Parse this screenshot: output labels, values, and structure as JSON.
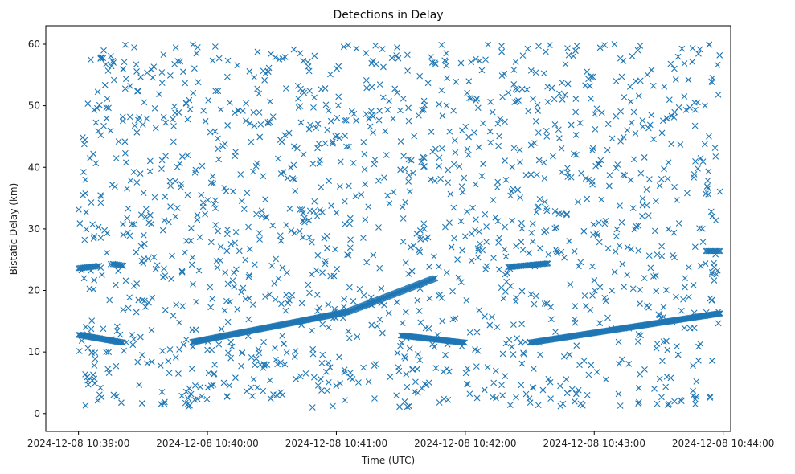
{
  "chart_data": {
    "type": "scatter",
    "title": "Detections in Delay",
    "xlabel": "Time (UTC)",
    "ylabel": "Bistatic Delay (km)",
    "marker": "x",
    "color": "#1f77b4",
    "grid": false,
    "x_units": "seconds after 2024-12-08 10:38:00 UTC",
    "xlim": [
      44.8,
      363.5
    ],
    "ylim": [
      -2.9,
      63
    ],
    "x_ticks": [
      {
        "value": 60,
        "label": "2024-12-08 10:39:00"
      },
      {
        "value": 120,
        "label": "2024-12-08 10:40:00"
      },
      {
        "value": 180,
        "label": "2024-12-08 10:41:00"
      },
      {
        "value": 240,
        "label": "2024-12-08 10:42:00"
      },
      {
        "value": 300,
        "label": "2024-12-08 10:43:00"
      },
      {
        "value": 360,
        "label": "2024-12-08 10:44:00"
      }
    ],
    "y_ticks": [
      0,
      10,
      20,
      30,
      40,
      50,
      60
    ],
    "tracks": [
      {
        "x_start": 60,
        "x_end": 81,
        "y_start": 12.8,
        "y_end": 11.5,
        "step": 0.45
      },
      {
        "x_start": 113,
        "x_end": 185,
        "y_start": 11.6,
        "y_end": 16.5,
        "step": 0.45
      },
      {
        "x_start": 185,
        "x_end": 226,
        "y_start": 16.5,
        "y_end": 22.0,
        "step": 0.45
      },
      {
        "x_start": 210,
        "x_end": 240,
        "y_start": 12.7,
        "y_end": 11.5,
        "step": 0.45
      },
      {
        "x_start": 270,
        "x_end": 359,
        "y_start": 11.5,
        "y_end": 16.3,
        "step": 0.45
      },
      {
        "x_start": 60,
        "x_end": 70,
        "y_start": 23.6,
        "y_end": 24.0,
        "step": 0.6
      },
      {
        "x_start": 76,
        "x_end": 81,
        "y_start": 24.3,
        "y_end": 24.0,
        "step": 0.6
      },
      {
        "x_start": 260,
        "x_end": 279,
        "y_start": 23.8,
        "y_end": 24.4,
        "step": 0.6
      },
      {
        "x_start": 352,
        "x_end": 359,
        "y_start": 26.4,
        "y_end": 26.4,
        "step": 0.6
      }
    ],
    "noise": {
      "count": 1500,
      "x_range": [
        60,
        359
      ],
      "y_range": [
        1,
        60
      ]
    }
  }
}
